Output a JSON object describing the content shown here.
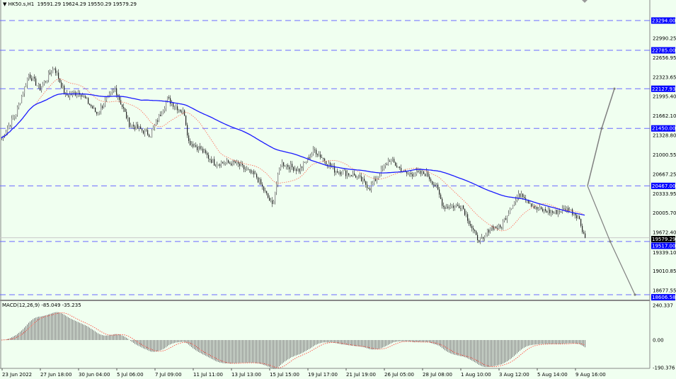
{
  "header": {
    "symbol": "HK50.s,H1",
    "ohlc": "19591.29 19624.29 19550.29 19579.29"
  },
  "colors": {
    "background": "#f0fff0",
    "level_line": "#6a6aff",
    "level_label_bg": "#0000ff",
    "ma_slow": "#1a1aff",
    "ma_fast": "#ff6a55",
    "candle": "#222222",
    "macd_hist": "#7a7a7a",
    "macd_signal": "#ff3b2f",
    "arrow": "#808080"
  },
  "chart_data": {
    "type": "candlestick",
    "price_anchors": [
      [
        0,
        21283
      ],
      [
        10,
        21707
      ],
      [
        19,
        22373
      ],
      [
        27,
        22131
      ],
      [
        37,
        22495
      ],
      [
        45,
        22010
      ],
      [
        55,
        22071
      ],
      [
        67,
        21707
      ],
      [
        80,
        22131
      ],
      [
        90,
        21526
      ],
      [
        105,
        21344
      ],
      [
        117,
        21950
      ],
      [
        129,
        21707
      ],
      [
        132,
        21223
      ],
      [
        140,
        21102
      ],
      [
        150,
        20859
      ],
      [
        165,
        20859
      ],
      [
        180,
        20617
      ],
      [
        191,
        20133
      ],
      [
        197,
        20859
      ],
      [
        210,
        20738
      ],
      [
        221,
        21077
      ],
      [
        235,
        20738
      ],
      [
        250,
        20641
      ],
      [
        260,
        20436
      ],
      [
        274,
        20920
      ],
      [
        285,
        20678
      ],
      [
        300,
        20678
      ],
      [
        307,
        20436
      ],
      [
        312,
        20109
      ],
      [
        325,
        20133
      ],
      [
        335,
        19588
      ],
      [
        340,
        19527
      ],
      [
        345,
        19770
      ],
      [
        352,
        19746
      ],
      [
        360,
        20133
      ],
      [
        367,
        20351
      ],
      [
        377,
        20073
      ],
      [
        390,
        20012
      ],
      [
        400,
        20073
      ],
      [
        407,
        19952
      ],
      [
        412,
        19579.29
      ]
    ],
    "price_axis": {
      "ticks": [
        "22990.25",
        "22656.95",
        "22323.65",
        "21995.40",
        "21662.10",
        "21328.80",
        "21000.55",
        "20667.25",
        "20333.95",
        "20005.70",
        "19672.40",
        "19339.10",
        "19010.85",
        "18677.55"
      ],
      "range": [
        18560,
        23640
      ]
    },
    "levels": [
      "23294.00",
      "22785.00",
      "22127.93",
      "21450.00",
      "20467.00",
      "19517.00",
      "18606.58"
    ],
    "current_price": "19579.29",
    "arrows": {
      "up": [
        20467,
        21450,
        22127.93
      ],
      "down": [
        20467,
        19517,
        18606.58
      ]
    },
    "time_axis": [
      "23 Jun 2022",
      "27 Jun 18:00",
      "30 Jun 04:00",
      "5 Jul 06:00",
      "7 Jul 09:00",
      "11 Jul 11:00",
      "13 Jul 13:00",
      "15 Jul 15:00",
      "19 Jul 17:00",
      "21 Jul 19:00",
      "26 Jul 05:00",
      "28 Jul 08:00",
      "1 Aug 10:00",
      "3 Aug 12:00",
      "5 Aug 14:00",
      "9 Aug 16:00"
    ],
    "macd": {
      "label": "MACD(12,26,9) -85.049 -35.235",
      "ticks": [
        "240.337",
        "0.00",
        "-190.376"
      ],
      "range": [
        -190.376,
        240.337
      ]
    }
  }
}
